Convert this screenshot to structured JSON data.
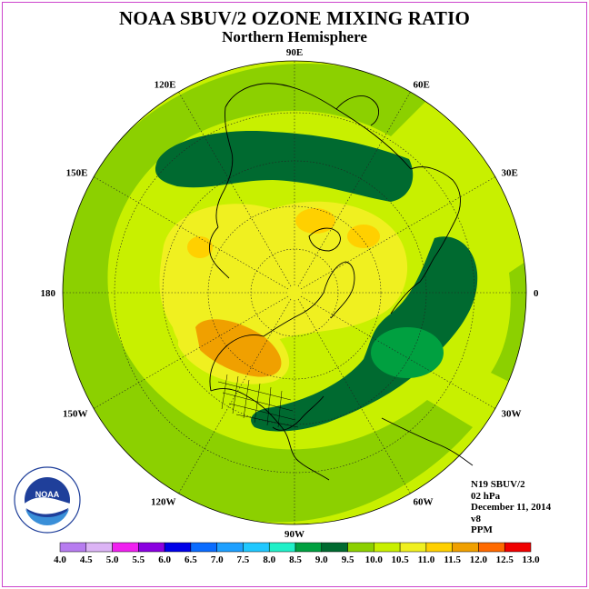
{
  "header": {
    "title": "NOAA SBUV/2 OZONE MIXING RATIO",
    "subtitle": "Northern Hemisphere"
  },
  "map": {
    "projection": "north-polar-stereographic",
    "longitude_labels": [
      {
        "text": "90E",
        "lon": 90
      },
      {
        "text": "60E",
        "lon": 60
      },
      {
        "text": "30E",
        "lon": 30
      },
      {
        "text": "0",
        "lon": 0
      },
      {
        "text": "30W",
        "lon": -30
      },
      {
        "text": "60W",
        "lon": -60
      },
      {
        "text": "90W",
        "lon": -90
      },
      {
        "text": "120W",
        "lon": -120
      },
      {
        "text": "150W",
        "lon": -150
      },
      {
        "text": "180",
        "lon": 180
      },
      {
        "text": "150E",
        "lon": 150
      },
      {
        "text": "120E",
        "lon": 120
      }
    ]
  },
  "info": {
    "satellite": "N19 SBUV/2",
    "level": "02 hPa",
    "date": "December 11, 2014",
    "version": "v8",
    "units": "PPM"
  },
  "colorbar": {
    "ticks": [
      "4.0",
      "4.5",
      "5.0",
      "5.5",
      "6.0",
      "6.5",
      "7.0",
      "7.5",
      "8.0",
      "8.5",
      "9.0",
      "9.5",
      "10.0",
      "10.5",
      "11.0",
      "11.5",
      "12.0",
      "12.5",
      "13.0"
    ],
    "colors": [
      "#b77cf0",
      "#dcb4f5",
      "#f020f0",
      "#8a00e0",
      "#0000e8",
      "#0a6cff",
      "#1ea0ff",
      "#20c8ff",
      "#20f0c8",
      "#00a040",
      "#006a30",
      "#8cd000",
      "#c8f000",
      "#f0f020",
      "#ffd000",
      "#f0a000",
      "#ff6a00",
      "#f00000",
      "#905030"
    ]
  },
  "logo": {
    "name": "NOAA",
    "ring_text": "NATIONAL OCEANIC AND ATMOSPHERIC ADMINISTRATION · U.S. DEPARTMENT OF COMMERCE"
  }
}
